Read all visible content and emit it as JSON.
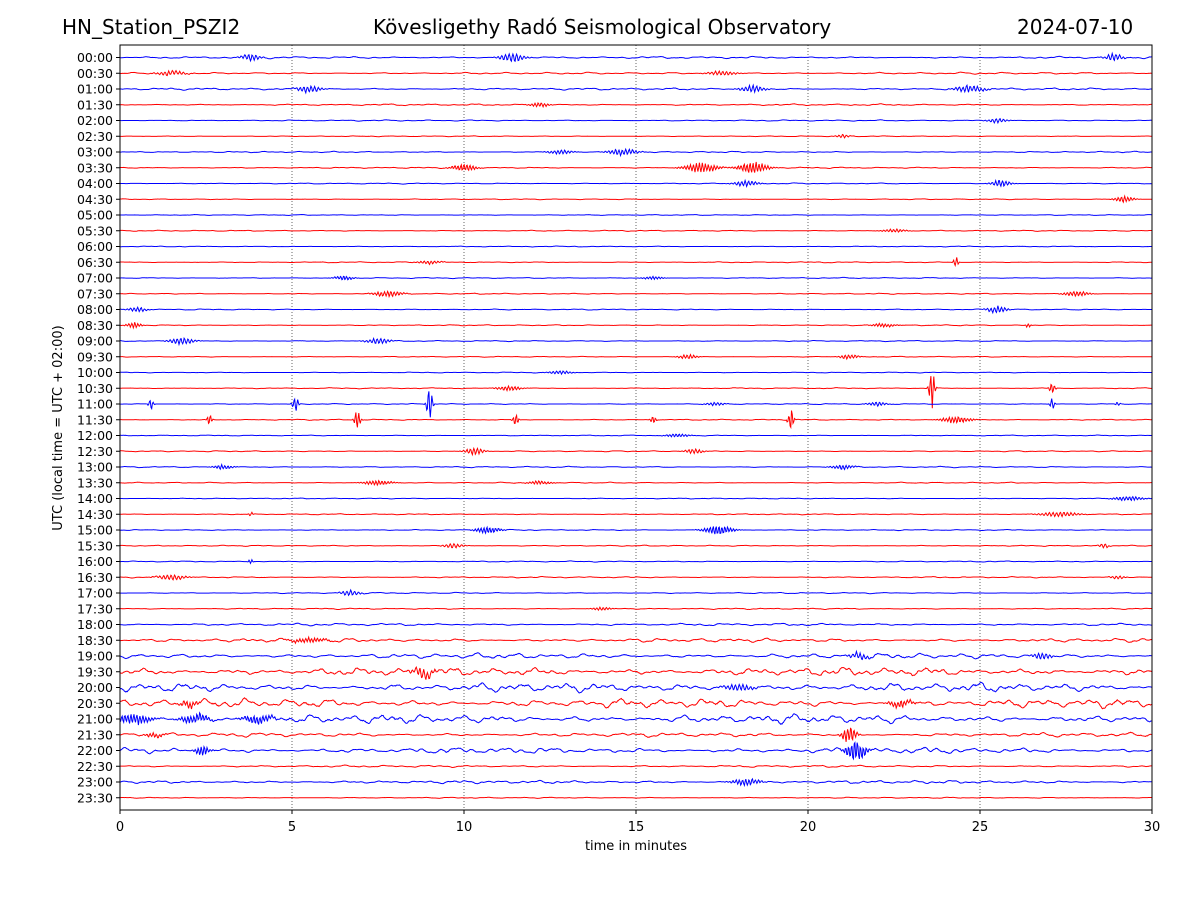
{
  "chart_data": {
    "type": "line",
    "station": "HN_Station_PSZI2",
    "title": "Kövesligethy Radó Seismological Observatory",
    "date": "2024-07-10",
    "xlabel": "time in minutes",
    "ylabel": "UTC (local time = UTC + 02:00)",
    "xlim": [
      0,
      30
    ],
    "xticks": [
      0,
      5,
      10,
      15,
      20,
      25,
      30
    ],
    "vgrid_minutes": [
      5,
      10,
      15,
      20,
      25
    ],
    "colors": {
      "even_rows": "#0000ff",
      "odd_rows": "#ff0000"
    },
    "rows": [
      {
        "label": "00:00",
        "noise": 1.0,
        "events": [
          {
            "t": 3.8,
            "amp": 3,
            "width": 0.4
          },
          {
            "t": 11.4,
            "amp": 4,
            "width": 0.5
          },
          {
            "t": 28.9,
            "amp": 3,
            "width": 0.4
          }
        ]
      },
      {
        "label": "00:30",
        "noise": 0.9,
        "events": [
          {
            "t": 1.5,
            "amp": 2,
            "width": 0.6
          },
          {
            "t": 17.5,
            "amp": 2,
            "width": 0.6
          }
        ]
      },
      {
        "label": "01:00",
        "noise": 1.0,
        "events": [
          {
            "t": 5.5,
            "amp": 3,
            "width": 0.5
          },
          {
            "t": 18.4,
            "amp": 3,
            "width": 0.5
          },
          {
            "t": 24.7,
            "amp": 3,
            "width": 0.6
          }
        ]
      },
      {
        "label": "01:30",
        "noise": 0.8,
        "events": [
          {
            "t": 12.2,
            "amp": 2,
            "width": 0.4
          }
        ]
      },
      {
        "label": "02:00",
        "noise": 0.6,
        "events": [
          {
            "t": 25.5,
            "amp": 2,
            "width": 0.4
          }
        ]
      },
      {
        "label": "02:30",
        "noise": 0.4,
        "events": [
          {
            "t": 21.0,
            "amp": 1.5,
            "width": 0.3
          }
        ]
      },
      {
        "label": "03:00",
        "noise": 0.6,
        "events": [
          {
            "t": 12.8,
            "amp": 2,
            "width": 0.5
          },
          {
            "t": 14.6,
            "amp": 3,
            "width": 0.6
          }
        ]
      },
      {
        "label": "03:30",
        "noise": 0.6,
        "events": [
          {
            "t": 10.0,
            "amp": 3,
            "width": 0.5
          },
          {
            "t": 16.9,
            "amp": 4,
            "width": 0.7
          },
          {
            "t": 18.4,
            "amp": 5,
            "width": 0.6
          }
        ]
      },
      {
        "label": "04:00",
        "noise": 0.5,
        "events": [
          {
            "t": 18.2,
            "amp": 2.5,
            "width": 0.5
          },
          {
            "t": 25.6,
            "amp": 3,
            "width": 0.4
          }
        ]
      },
      {
        "label": "04:30",
        "noise": 0.4,
        "events": [
          {
            "t": 29.2,
            "amp": 2.5,
            "width": 0.4
          }
        ]
      },
      {
        "label": "05:00",
        "noise": 0.4,
        "events": []
      },
      {
        "label": "05:30",
        "noise": 0.5,
        "events": [
          {
            "t": 22.5,
            "amp": 1.5,
            "width": 0.5
          }
        ]
      },
      {
        "label": "06:00",
        "noise": 0.4,
        "events": []
      },
      {
        "label": "06:30",
        "noise": 0.5,
        "events": [
          {
            "t": 9.0,
            "amp": 1.5,
            "width": 0.5
          },
          {
            "t": 24.3,
            "amp": 5,
            "width": 0.1
          }
        ]
      },
      {
        "label": "07:00",
        "noise": 0.5,
        "events": [
          {
            "t": 6.5,
            "amp": 2,
            "width": 0.4
          },
          {
            "t": 15.5,
            "amp": 1.5,
            "width": 0.4
          }
        ]
      },
      {
        "label": "07:30",
        "noise": 0.5,
        "events": [
          {
            "t": 7.8,
            "amp": 2.5,
            "width": 0.6
          },
          {
            "t": 27.8,
            "amp": 2.5,
            "width": 0.5
          }
        ]
      },
      {
        "label": "08:00",
        "noise": 0.5,
        "events": [
          {
            "t": 0.5,
            "amp": 2,
            "width": 0.4
          },
          {
            "t": 25.5,
            "amp": 3,
            "width": 0.4
          }
        ]
      },
      {
        "label": "08:30",
        "noise": 0.5,
        "events": [
          {
            "t": 0.4,
            "amp": 2.5,
            "width": 0.3
          },
          {
            "t": 22.2,
            "amp": 1.5,
            "width": 0.5
          },
          {
            "t": 26.4,
            "amp": 2,
            "width": 0.1
          }
        ]
      },
      {
        "label": "09:00",
        "noise": 0.5,
        "events": [
          {
            "t": 1.8,
            "amp": 3,
            "width": 0.5
          },
          {
            "t": 7.5,
            "amp": 2.5,
            "width": 0.5
          }
        ]
      },
      {
        "label": "09:30",
        "noise": 0.4,
        "events": [
          {
            "t": 16.5,
            "amp": 2,
            "width": 0.4
          },
          {
            "t": 21.2,
            "amp": 2,
            "width": 0.4
          }
        ]
      },
      {
        "label": "10:00",
        "noise": 0.4,
        "events": [
          {
            "t": 12.8,
            "amp": 1.5,
            "width": 0.5
          }
        ]
      },
      {
        "label": "10:30",
        "noise": 0.5,
        "events": [
          {
            "t": 11.3,
            "amp": 2,
            "width": 0.5
          },
          {
            "t": 23.6,
            "amp": 16,
            "width": 0.12
          },
          {
            "t": 27.1,
            "amp": 5,
            "width": 0.12
          }
        ]
      },
      {
        "label": "11:00",
        "noise": 0.5,
        "events": [
          {
            "t": 0.9,
            "amp": 5,
            "width": 0.1
          },
          {
            "t": 5.1,
            "amp": 7,
            "width": 0.12
          },
          {
            "t": 9.0,
            "amp": 14,
            "width": 0.12
          },
          {
            "t": 17.3,
            "amp": 1.5,
            "width": 0.4
          },
          {
            "t": 22.0,
            "amp": 2,
            "width": 0.4
          },
          {
            "t": 27.1,
            "amp": 5,
            "width": 0.1
          },
          {
            "t": 29.0,
            "amp": 2,
            "width": 0.1
          }
        ]
      },
      {
        "label": "11:30",
        "noise": 0.5,
        "events": [
          {
            "t": 2.6,
            "amp": 5,
            "width": 0.1
          },
          {
            "t": 6.9,
            "amp": 9,
            "width": 0.12
          },
          {
            "t": 11.5,
            "amp": 5,
            "width": 0.12
          },
          {
            "t": 15.5,
            "amp": 3,
            "width": 0.12
          },
          {
            "t": 19.5,
            "amp": 10,
            "width": 0.12
          },
          {
            "t": 24.3,
            "amp": 3,
            "width": 0.6
          }
        ]
      },
      {
        "label": "12:00",
        "noise": 0.4,
        "events": [
          {
            "t": 16.2,
            "amp": 1.5,
            "width": 0.5
          }
        ]
      },
      {
        "label": "12:30",
        "noise": 0.5,
        "events": [
          {
            "t": 10.3,
            "amp": 3,
            "width": 0.4
          },
          {
            "t": 16.7,
            "amp": 2,
            "width": 0.4
          }
        ]
      },
      {
        "label": "13:00",
        "noise": 0.6,
        "events": [
          {
            "t": 3.0,
            "amp": 2,
            "width": 0.4
          },
          {
            "t": 21.0,
            "amp": 2,
            "width": 0.5
          }
        ]
      },
      {
        "label": "13:30",
        "noise": 0.5,
        "events": [
          {
            "t": 7.5,
            "amp": 2,
            "width": 0.6
          },
          {
            "t": 12.2,
            "amp": 1.5,
            "width": 0.5
          }
        ]
      },
      {
        "label": "14:00",
        "noise": 0.4,
        "events": [
          {
            "t": 29.3,
            "amp": 2,
            "width": 0.6
          }
        ]
      },
      {
        "label": "14:30",
        "noise": 0.5,
        "events": [
          {
            "t": 3.8,
            "amp": 2,
            "width": 0.1
          },
          {
            "t": 27.3,
            "amp": 2,
            "width": 0.8
          }
        ]
      },
      {
        "label": "15:00",
        "noise": 0.5,
        "events": [
          {
            "t": 10.7,
            "amp": 3,
            "width": 0.5
          },
          {
            "t": 17.4,
            "amp": 4,
            "width": 0.6
          }
        ]
      },
      {
        "label": "15:30",
        "noise": 0.5,
        "events": [
          {
            "t": 9.7,
            "amp": 2,
            "width": 0.4
          },
          {
            "t": 28.6,
            "amp": 2,
            "width": 0.2
          }
        ]
      },
      {
        "label": "16:00",
        "noise": 0.5,
        "events": [
          {
            "t": 3.8,
            "amp": 2,
            "width": 0.1
          }
        ]
      },
      {
        "label": "16:30",
        "noise": 0.6,
        "events": [
          {
            "t": 1.5,
            "amp": 2.5,
            "width": 0.6
          },
          {
            "t": 29.0,
            "amp": 1.5,
            "width": 0.3
          }
        ]
      },
      {
        "label": "17:00",
        "noise": 0.6,
        "events": [
          {
            "t": 6.7,
            "amp": 2.5,
            "width": 0.4
          }
        ]
      },
      {
        "label": "17:30",
        "noise": 0.6,
        "events": [
          {
            "t": 14.0,
            "amp": 1.5,
            "width": 0.4
          }
        ]
      },
      {
        "label": "18:00",
        "noise": 1.2,
        "events": []
      },
      {
        "label": "18:30",
        "noise": 1.8,
        "events": [
          {
            "t": 5.5,
            "amp": 2,
            "width": 0.8
          }
        ]
      },
      {
        "label": "19:00",
        "noise": 2.6,
        "events": [
          {
            "t": 21.5,
            "amp": 3,
            "width": 0.4
          },
          {
            "t": 26.8,
            "amp": 3,
            "width": 0.4
          }
        ]
      },
      {
        "label": "19:30",
        "noise": 4.0,
        "events": [
          {
            "t": 8.8,
            "amp": 4,
            "width": 0.5
          }
        ]
      },
      {
        "label": "20:00",
        "noise": 4.2,
        "events": [
          {
            "t": 18.0,
            "amp": 3,
            "width": 0.6
          }
        ]
      },
      {
        "label": "20:30",
        "noise": 4.2,
        "events": [
          {
            "t": 2.0,
            "amp": 3,
            "width": 0.4
          },
          {
            "t": 22.7,
            "amp": 3,
            "width": 0.5
          }
        ]
      },
      {
        "label": "21:00",
        "noise": 4.2,
        "events": [
          {
            "t": 0.4,
            "amp": 5,
            "width": 0.7
          },
          {
            "t": 2.2,
            "amp": 4,
            "width": 0.6
          },
          {
            "t": 4.0,
            "amp": 4,
            "width": 0.6
          }
        ]
      },
      {
        "label": "21:30",
        "noise": 2.0,
        "events": [
          {
            "t": 1.0,
            "amp": 2,
            "width": 0.4
          },
          {
            "t": 21.2,
            "amp": 7,
            "width": 0.3
          }
        ]
      },
      {
        "label": "22:00",
        "noise": 2.8,
        "events": [
          {
            "t": 2.4,
            "amp": 4,
            "width": 0.3
          },
          {
            "t": 21.4,
            "amp": 9,
            "width": 0.4
          }
        ]
      },
      {
        "label": "22:30",
        "noise": 1.0,
        "events": []
      },
      {
        "label": "23:00",
        "noise": 1.5,
        "events": [
          {
            "t": 18.2,
            "amp": 3,
            "width": 0.6
          }
        ]
      },
      {
        "label": "23:30",
        "noise": 0.5,
        "events": []
      }
    ]
  }
}
